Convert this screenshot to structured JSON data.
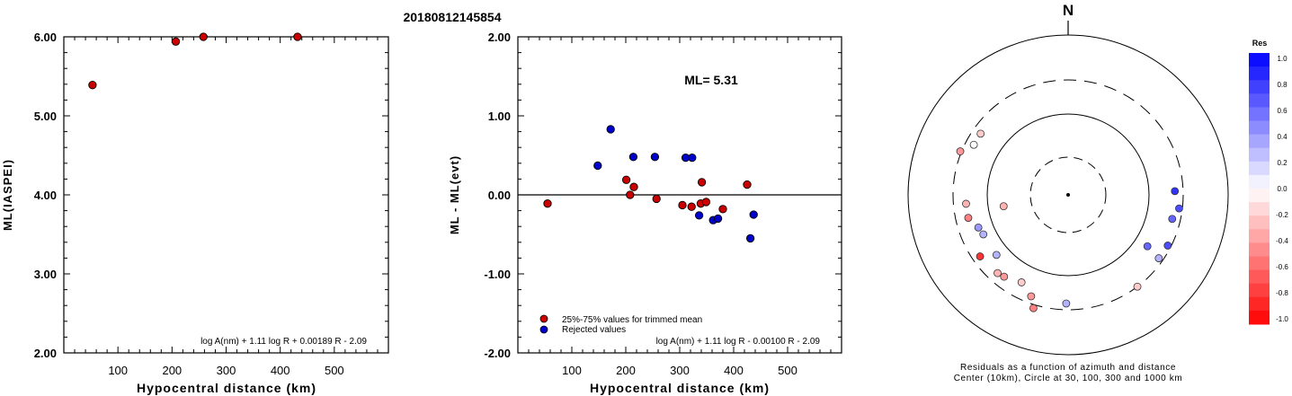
{
  "figure_title": "20180812145854",
  "chart_data": [
    {
      "type": "scatter",
      "title": "",
      "xlabel": "Hypocentral distance (km)",
      "ylabel": "ML(IASPEI)",
      "xlim": [
        0,
        600
      ],
      "ylim": [
        2.0,
        6.0
      ],
      "x_ticks": [
        "100",
        "200",
        "300",
        "400",
        "500"
      ],
      "y_ticks": [
        "2.00",
        "3.00",
        "4.00",
        "5.00",
        "6.00"
      ],
      "formula": "log A(nm) + 1.11 log R + 0.00189 R - 2.09",
      "series": [
        {
          "color": "#cc0000",
          "points": [
            {
              "x": 53,
              "y": 5.39
            },
            {
              "x": 207,
              "y": 5.94
            },
            {
              "x": 258,
              "y": 6.03
            },
            {
              "x": 432,
              "y": 6.03
            }
          ]
        }
      ]
    },
    {
      "type": "scatter",
      "title": "",
      "xlabel": "Hypocentral distance (km)",
      "ylabel": "ML - ML(evt)",
      "xlim": [
        0,
        600
      ],
      "ylim": [
        -2.0,
        2.0
      ],
      "x_ticks": [
        "100",
        "200",
        "300",
        "400",
        "500"
      ],
      "y_ticks": [
        "-2.00",
        "-1.00",
        "0.00",
        "1.00",
        "2.00"
      ],
      "annotation": "ML= 5.31",
      "formula": "log A(nm) + 1.11 log R - 0.00100 R - 2.09",
      "reference_line_y": 0.0,
      "legend": [
        "25%-75% values for trimmed mean",
        "Rejected values"
      ],
      "series": [
        {
          "name": "25%-75% values for trimmed mean",
          "color": "#cc0000",
          "points": [
            {
              "x": 55,
              "y": -0.11
            },
            {
              "x": 201,
              "y": 0.19
            },
            {
              "x": 208,
              "y": 0.0
            },
            {
              "x": 215,
              "y": 0.1
            },
            {
              "x": 257,
              "y": -0.05
            },
            {
              "x": 305,
              "y": -0.13
            },
            {
              "x": 322,
              "y": -0.15
            },
            {
              "x": 339,
              "y": -0.11
            },
            {
              "x": 341,
              "y": 0.16
            },
            {
              "x": 349,
              "y": -0.09
            },
            {
              "x": 380,
              "y": -0.18
            },
            {
              "x": 425,
              "y": 0.13
            }
          ]
        },
        {
          "name": "Rejected values",
          "color": "#0000cc",
          "points": [
            {
              "x": 148,
              "y": 0.37
            },
            {
              "x": 172,
              "y": 0.83
            },
            {
              "x": 214,
              "y": 0.48
            },
            {
              "x": 254,
              "y": 0.48
            },
            {
              "x": 311,
              "y": 0.47
            },
            {
              "x": 323,
              "y": 0.47
            },
            {
              "x": 336,
              "y": -0.26
            },
            {
              "x": 362,
              "y": -0.32
            },
            {
              "x": 371,
              "y": -0.3
            },
            {
              "x": 431,
              "y": -0.55
            },
            {
              "x": 437,
              "y": -0.25
            }
          ]
        }
      ]
    },
    {
      "type": "scatter",
      "subtype": "polar",
      "north_label": "N",
      "caption_line1": "Residuals as a function of azimuth and distance",
      "caption_line2": "Center (10km), Circle at 30, 100, 300 and 1000 km",
      "colorbar_title": "Res",
      "colorbar_ticks": [
        "1.0",
        "0.8",
        "0.6",
        "0.4",
        "0.2",
        "0.0",
        "-0.2",
        "-0.4",
        "-0.6",
        "-0.8",
        "-1.0"
      ],
      "colorbar_high_color": "#0000ff",
      "colorbar_low_color": "#ff0000",
      "points": [
        {
          "az": 305,
          "dist": 230,
          "res": -0.2
        },
        {
          "az": 292,
          "dist": 310,
          "res": -0.4
        },
        {
          "az": 298,
          "dist": 230,
          "res": 0.0
        },
        {
          "az": 265,
          "dist": 200,
          "res": -0.3
        },
        {
          "az": 257,
          "dist": 200,
          "res": -0.5
        },
        {
          "az": 250,
          "dist": 160,
          "res": 0.4
        },
        {
          "az": 245,
          "dist": 150,
          "res": 0.3
        },
        {
          "az": 235,
          "dist": 235,
          "res": -0.8
        },
        {
          "az": 230,
          "dist": 150,
          "res": 0.3
        },
        {
          "az": 222,
          "dist": 220,
          "res": -0.3
        },
        {
          "az": 218,
          "dist": 210,
          "res": -0.4
        },
        {
          "az": 208,
          "dist": 180,
          "res": -0.2
        },
        {
          "az": 200,
          "dist": 240,
          "res": -0.4
        },
        {
          "az": 197,
          "dist": 330,
          "res": -0.5
        },
        {
          "az": 181,
          "dist": 245,
          "res": 0.3
        },
        {
          "az": 143,
          "dist": 300,
          "res": -0.2
        },
        {
          "az": 125,
          "dist": 260,
          "res": 0.3
        },
        {
          "az": 123,
          "dist": 155,
          "res": 0.6
        },
        {
          "az": 117,
          "dist": 270,
          "res": 0.7
        },
        {
          "az": 103,
          "dist": 230,
          "res": 0.6
        },
        {
          "az": 97,
          "dist": 270,
          "res": 0.7
        },
        {
          "az": 88,
          "dist": 230,
          "res": 0.8
        },
        {
          "az": 260,
          "dist": 65,
          "res": -0.3
        }
      ]
    }
  ]
}
